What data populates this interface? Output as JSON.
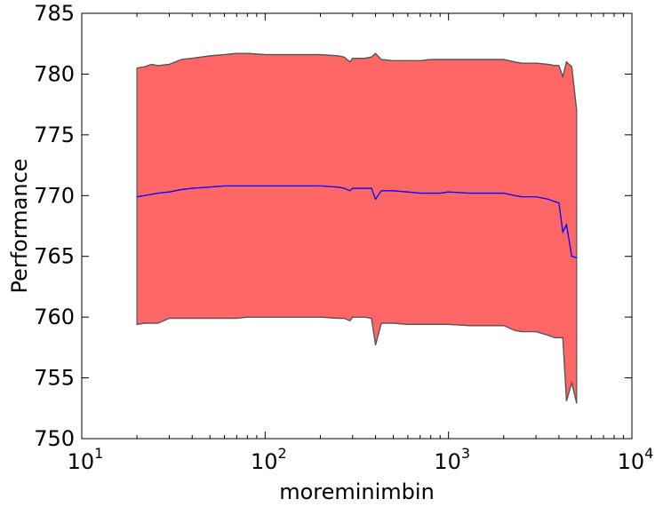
{
  "chart_data": {
    "type": "area",
    "title": "",
    "xlabel": "moreminimbin",
    "ylabel": "Performance",
    "xscale": "log",
    "xlim": [
      10,
      10000
    ],
    "ylim": [
      750,
      785
    ],
    "x_ticks": [
      {
        "value": 10,
        "base": "10",
        "exp": "1"
      },
      {
        "value": 100,
        "base": "10",
        "exp": "2"
      },
      {
        "value": 1000,
        "base": "10",
        "exp": "3"
      },
      {
        "value": 10000,
        "base": "10",
        "exp": "4"
      }
    ],
    "y_ticks": [
      750,
      755,
      760,
      765,
      770,
      775,
      780,
      785
    ],
    "y_tick_labels": [
      "750",
      "755",
      "760",
      "765",
      "770",
      "775",
      "780",
      "785"
    ],
    "grid": false,
    "legend": "none",
    "series": [
      {
        "role": "mean",
        "color": "#0000ff",
        "x": [
          20,
          22,
          24,
          26,
          30,
          35,
          40,
          50,
          60,
          70,
          80,
          100,
          120,
          150,
          200,
          250,
          270,
          290,
          300,
          350,
          380,
          400,
          430,
          500,
          600,
          700,
          800,
          900,
          1000,
          1300,
          1600,
          2000,
          2300,
          2500,
          3000,
          3500,
          3800,
          4000,
          4200,
          4400,
          4700,
          5000
        ],
        "y": [
          769.9,
          770.0,
          770.1,
          770.2,
          770.3,
          770.5,
          770.6,
          770.7,
          770.8,
          770.8,
          770.8,
          770.8,
          770.8,
          770.8,
          770.8,
          770.7,
          770.6,
          770.4,
          770.6,
          770.6,
          770.6,
          769.7,
          770.4,
          770.4,
          770.3,
          770.2,
          770.2,
          770.2,
          770.3,
          770.2,
          770.2,
          770.2,
          770.0,
          769.9,
          769.9,
          769.7,
          769.5,
          769.4,
          767.0,
          767.6,
          765.0,
          764.9
        ]
      },
      {
        "role": "upper-bound",
        "color": "#555555",
        "x": [
          20,
          22,
          24,
          26,
          30,
          35,
          40,
          50,
          60,
          70,
          80,
          100,
          120,
          150,
          200,
          250,
          270,
          290,
          300,
          350,
          380,
          400,
          430,
          500,
          600,
          700,
          800,
          900,
          1000,
          1300,
          1600,
          2000,
          2300,
          2500,
          3000,
          3500,
          3800,
          4000,
          4200,
          4400,
          4700,
          5000
        ],
        "y": [
          780.5,
          780.6,
          780.8,
          780.7,
          780.8,
          781.2,
          781.3,
          781.5,
          781.6,
          781.7,
          781.7,
          781.6,
          781.6,
          781.6,
          781.6,
          781.5,
          781.4,
          781.0,
          781.3,
          781.3,
          781.4,
          781.7,
          781.2,
          781.1,
          781.1,
          781.1,
          781.2,
          781.2,
          781.2,
          781.2,
          781.2,
          781.2,
          781.0,
          780.9,
          780.9,
          780.8,
          780.7,
          780.7,
          779.8,
          781.0,
          780.6,
          777.0
        ]
      },
      {
        "role": "lower-bound",
        "color": "#555555",
        "x": [
          20,
          22,
          24,
          26,
          30,
          35,
          40,
          50,
          60,
          70,
          80,
          100,
          120,
          150,
          200,
          250,
          270,
          290,
          300,
          350,
          380,
          400,
          430,
          500,
          600,
          700,
          800,
          900,
          1000,
          1300,
          1600,
          2000,
          2300,
          2500,
          3000,
          3500,
          3800,
          4000,
          4200,
          4400,
          4700,
          5000
        ],
        "y": [
          759.4,
          759.5,
          759.5,
          759.5,
          759.9,
          759.9,
          759.9,
          759.9,
          759.9,
          759.9,
          760.0,
          760.0,
          760.0,
          760.0,
          760.0,
          759.9,
          759.9,
          759.7,
          760.0,
          760.0,
          759.9,
          757.7,
          759.5,
          759.5,
          759.4,
          759.4,
          759.4,
          759.4,
          759.4,
          759.3,
          759.3,
          759.3,
          758.9,
          758.8,
          758.8,
          758.5,
          758.3,
          758.3,
          758.3,
          753.1,
          754.6,
          752.9
        ]
      }
    ],
    "band_fill_color": "#ff6666"
  }
}
